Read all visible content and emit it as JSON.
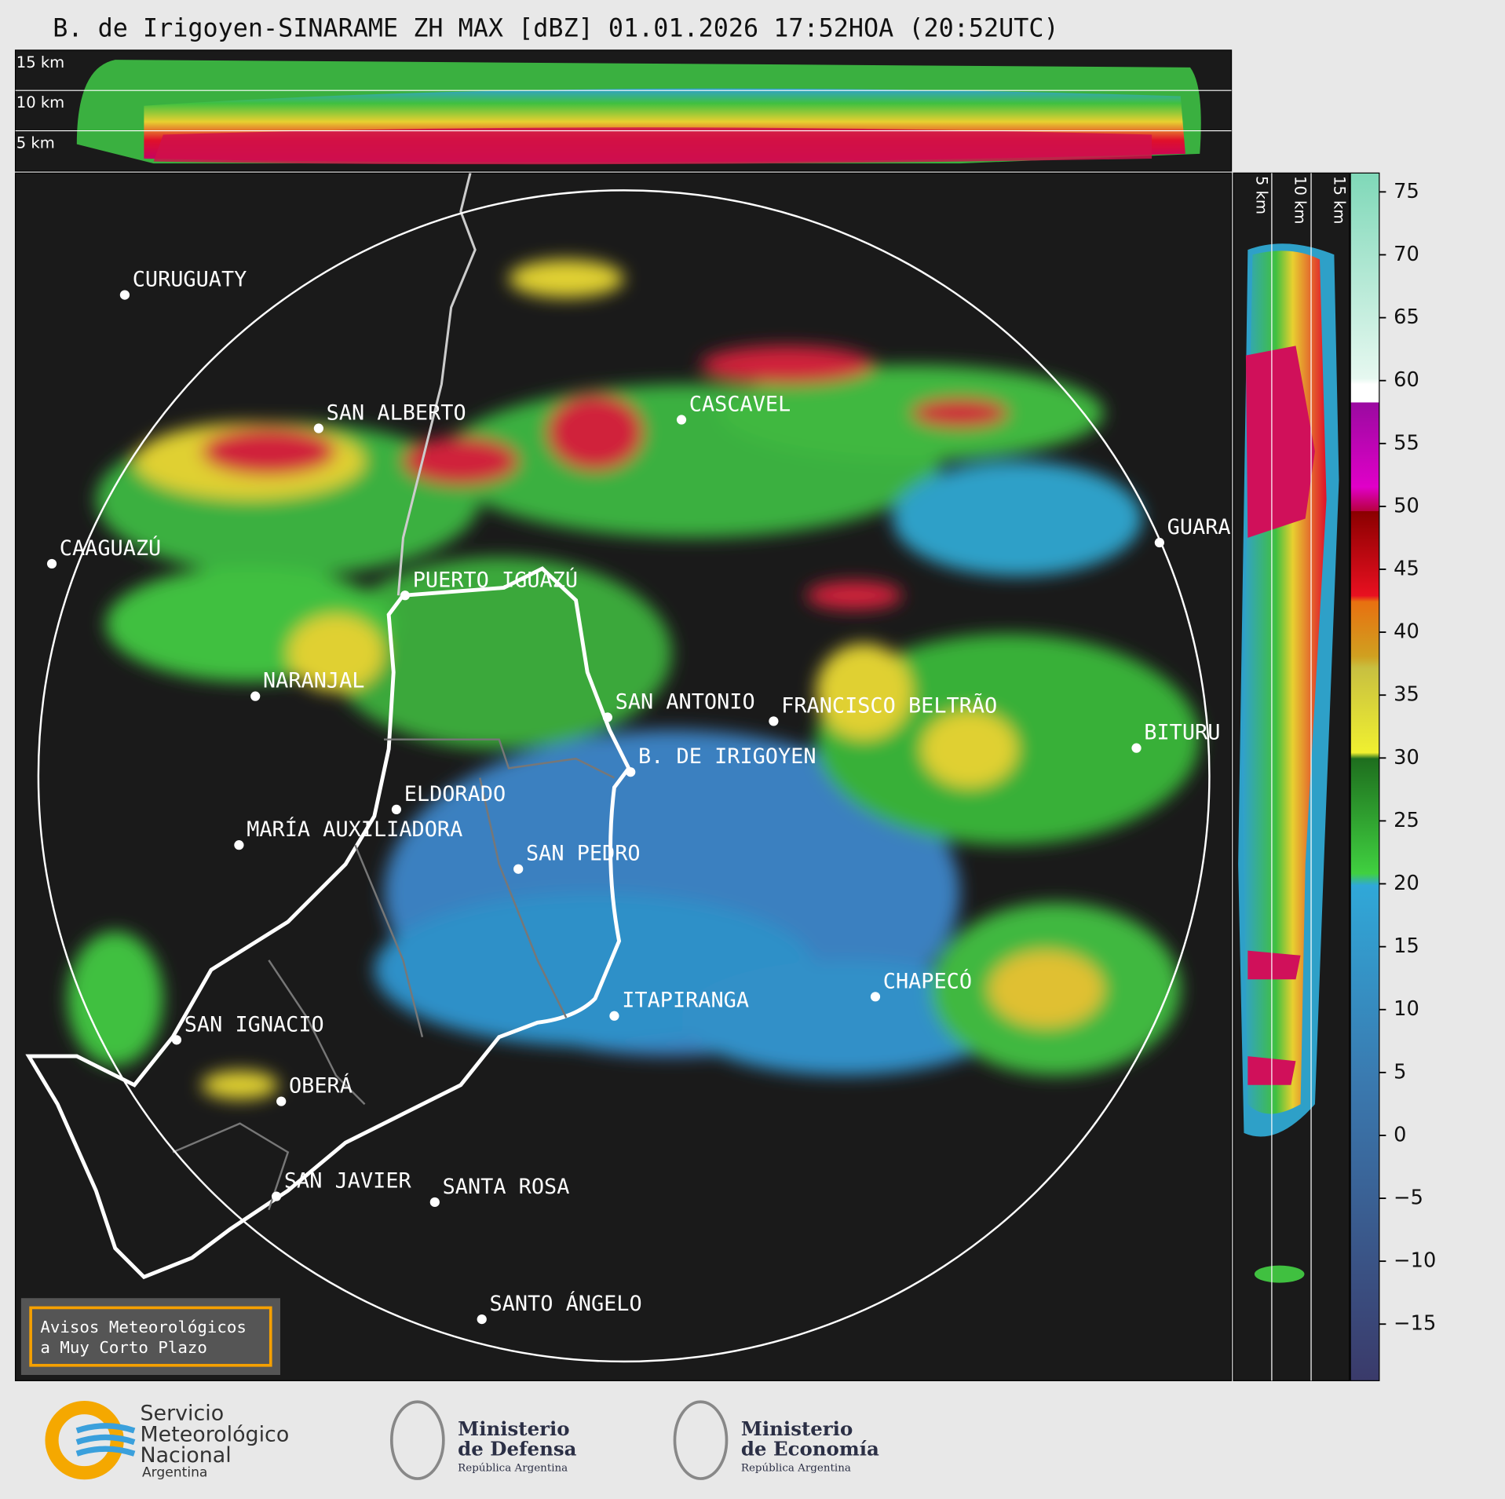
{
  "header": {
    "title": "B. de Irigoyen-SINARAME ZH MAX [dBZ] 01.01.2026 17:52HOA (20:52UTC)"
  },
  "top_panel": {
    "height_labels": [
      "15 km",
      "10 km",
      "5 km"
    ]
  },
  "side_panel": {
    "height_labels": [
      "5 km",
      "10 km",
      "15 km"
    ]
  },
  "map": {
    "cities": [
      "CURUGUATY",
      "SAN ALBERTO",
      "CASCAVEL",
      "GUARA",
      "CAAGUAZÚ",
      "PUERTO IGUAZÚ",
      "NARANJAL",
      "SAN ANTONIO",
      "FRANCISCO BELTRÃO",
      "B. DE IRIGOYEN",
      "BITURU",
      "ELDORADO",
      "MARÍA AUXILIADORA",
      "SAN PEDRO",
      "CHAPECÓ",
      "ITAPIRANGA",
      "SAN IGNACIO",
      "OBERÁ",
      "SAN JAVIER",
      "SANTA ROSA",
      "SANTO ÁNGELO"
    ]
  },
  "colorbar": {
    "lim": [
      -19.5,
      76.5
    ],
    "ticks": [
      75,
      70,
      65,
      60,
      55,
      50,
      45,
      40,
      35,
      30,
      25,
      20,
      15,
      10,
      5,
      0,
      {
        "value": -5,
        "label": "−5"
      },
      {
        "value": -10,
        "label": "−10"
      },
      {
        "value": -15,
        "label": "−15"
      }
    ]
  },
  "notice": {
    "lines": [
      "Avisos Meteorológicos",
      "a Muy Corto Plazo"
    ]
  },
  "footer": {
    "smn": {
      "lines": [
        "Servicio",
        "Meteorológico",
        "Nacional"
      ],
      "country": "Argentina"
    },
    "defensa": {
      "lines": [
        "Ministerio",
        "de Defensa"
      ],
      "country": "República Argentina"
    },
    "economia": {
      "lines": [
        "Ministerio",
        "de Economía"
      ],
      "country": "República Argentina"
    }
  }
}
